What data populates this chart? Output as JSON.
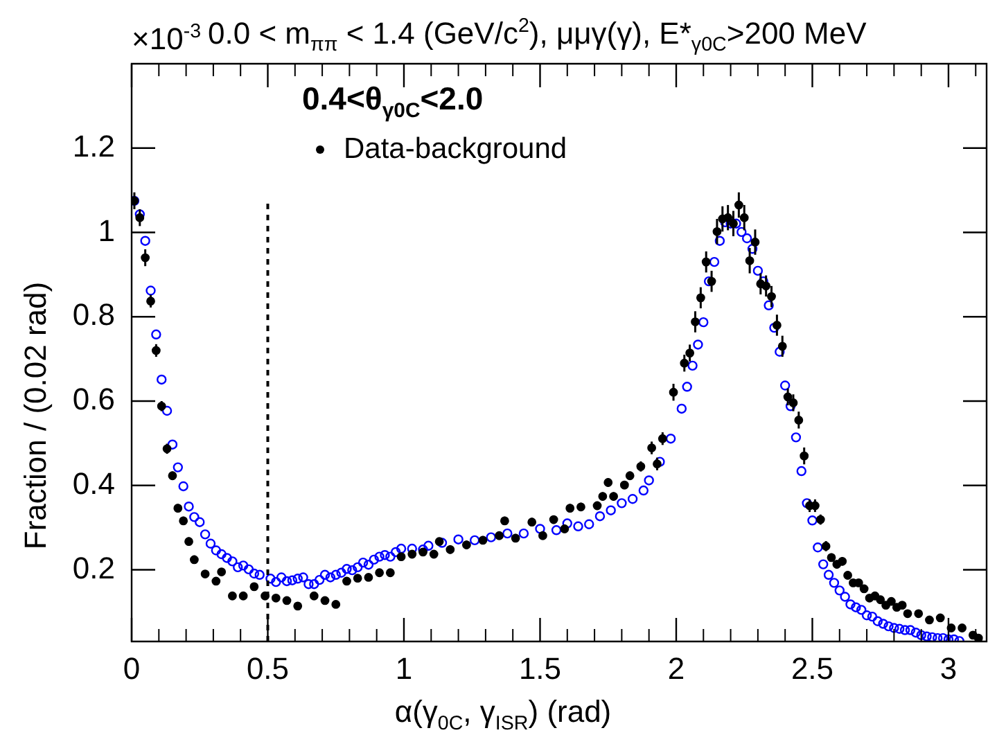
{
  "chart_data": {
    "type": "scatter",
    "title": "0.0 < m$_{ππ}$ < 1.4 (GeV/c$^{2}$), μμγ(γ), E*$_{γ0C}$>200 MeV",
    "xlabel": "α(γ$_{0C}$, γ$_{ISR}$) (rad)",
    "ylabel": "Fraction / (0.02 rad)",
    "legend_title": "0.4<θ$_{γ0C}$<2.0",
    "annotations": [
      "×10$^{-3}$"
    ],
    "xlim": [
      0,
      3.14
    ],
    "xticks": [
      0,
      0.5,
      1,
      1.5,
      2,
      2.5,
      3
    ],
    "ylim": [
      0.03,
      1.4
    ],
    "yticks": [
      0.2,
      0.4,
      0.6,
      0.8,
      1,
      1.2
    ],
    "grid": false,
    "legend": "top left",
    "marker": "circle",
    "ref_lines": [
      {
        "axis": "x",
        "value": 0.5,
        "color": "#000000",
        "line_style": "dashed"
      }
    ],
    "series": [
      {
        "name": "Data-background",
        "color": "#000000",
        "x": [
          0.01,
          0.03,
          0.05,
          0.07,
          0.09,
          0.11,
          0.13,
          0.15,
          0.17,
          0.19,
          0.21,
          0.23,
          0.27,
          0.31,
          0.33,
          0.37,
          0.41,
          0.45,
          0.49,
          0.53,
          0.57,
          0.61,
          0.67,
          0.71,
          0.75,
          0.79,
          0.83,
          0.87,
          0.91,
          0.95,
          0.99,
          1.03,
          1.07,
          1.11,
          1.13,
          1.17,
          1.23,
          1.29,
          1.35,
          1.37,
          1.41,
          1.47,
          1.51,
          1.55,
          1.59,
          1.61,
          1.65,
          1.71,
          1.73,
          1.75,
          1.77,
          1.81,
          1.83,
          1.87,
          1.91,
          1.93,
          1.95,
          1.99,
          2.03,
          2.05,
          2.07,
          2.09,
          2.11,
          2.13,
          2.15,
          2.17,
          2.19,
          2.21,
          2.23,
          2.25,
          2.27,
          2.29,
          2.31,
          2.33,
          2.35,
          2.37,
          2.39,
          2.41,
          2.43,
          2.45,
          2.47,
          2.49,
          2.51,
          2.53,
          2.55,
          2.57,
          2.59,
          2.61,
          2.63,
          2.65,
          2.67,
          2.69,
          2.71,
          2.73,
          2.75,
          2.77,
          2.79,
          2.81,
          2.83,
          2.85,
          2.89,
          2.93,
          2.97,
          3.01,
          3.05,
          3.09,
          3.11
        ],
        "values": [
          1.075,
          1.035,
          0.94,
          0.837,
          0.72,
          0.588,
          0.487,
          0.423,
          0.346,
          0.316,
          0.267,
          0.224,
          0.19,
          0.173,
          0.195,
          0.138,
          0.138,
          0.16,
          0.138,
          0.133,
          0.127,
          0.114,
          0.138,
          0.127,
          0.118,
          0.173,
          0.18,
          0.182,
          0.193,
          0.193,
          0.231,
          0.237,
          0.242,
          0.237,
          0.267,
          0.248,
          0.259,
          0.27,
          0.281,
          0.316,
          0.275,
          0.313,
          0.281,
          0.319,
          0.297,
          0.346,
          0.349,
          0.352,
          0.374,
          0.407,
          0.374,
          0.401,
          0.423,
          0.445,
          0.489,
          0.451,
          0.511,
          0.621,
          0.69,
          0.714,
          0.788,
          0.845,
          0.93,
          0.884,
          1.002,
          1.032,
          1.035,
          1.021,
          1.065,
          1.035,
          0.933,
          0.977,
          0.878,
          0.873,
          0.848,
          0.78,
          0.73,
          0.61,
          0.596,
          0.555,
          0.47,
          0.352,
          0.352,
          0.319,
          0.256,
          0.229,
          0.213,
          0.22,
          0.187,
          0.169,
          0.169,
          0.155,
          0.133,
          0.138,
          0.129,
          0.116,
          0.125,
          0.111,
          0.116,
          0.096,
          0.096,
          0.081,
          0.086,
          0.062,
          0.062,
          0.045,
          0.038
        ],
        "errors": [
          0.02,
          0.02,
          0.02,
          0.015,
          0.015,
          0.012,
          0.012,
          0.01,
          0.01,
          0.01,
          0.01,
          0.01,
          0.008,
          0.008,
          0.008,
          0.008,
          0.008,
          0.008,
          0.008,
          0.008,
          0.008,
          0.008,
          0.008,
          0.008,
          0.008,
          0.008,
          0.008,
          0.008,
          0.008,
          0.008,
          0.008,
          0.008,
          0.008,
          0.008,
          0.008,
          0.01,
          0.01,
          0.01,
          0.01,
          0.01,
          0.01,
          0.01,
          0.01,
          0.01,
          0.01,
          0.01,
          0.01,
          0.01,
          0.01,
          0.01,
          0.01,
          0.01,
          0.01,
          0.012,
          0.015,
          0.015,
          0.015,
          0.02,
          0.02,
          0.02,
          0.025,
          0.025,
          0.025,
          0.025,
          0.03,
          0.03,
          0.03,
          0.03,
          0.03,
          0.03,
          0.03,
          0.03,
          0.025,
          0.025,
          0.025,
          0.025,
          0.025,
          0.02,
          0.02,
          0.02,
          0.02,
          0.015,
          0.015,
          0.012,
          0.012,
          0.01,
          0.01,
          0.01,
          0.01,
          0.008,
          0.008,
          0.008,
          0.008,
          0.008,
          0.008,
          0.008,
          0.008,
          0.008,
          0.008,
          0.006,
          0.006,
          0.006,
          0.006,
          0.006,
          0.006,
          0.006,
          0.006
        ]
      },
      {
        "color": "#0000ff",
        "x": [
          0.01,
          0.03,
          0.05,
          0.07,
          0.09,
          0.11,
          0.13,
          0.15,
          0.17,
          0.19,
          0.21,
          0.23,
          0.25,
          0.27,
          0.29,
          0.31,
          0.33,
          0.35,
          0.37,
          0.39,
          0.41,
          0.43,
          0.45,
          0.47,
          0.51,
          0.53,
          0.55,
          0.57,
          0.59,
          0.61,
          0.63,
          0.65,
          0.67,
          0.69,
          0.71,
          0.73,
          0.75,
          0.77,
          0.79,
          0.81,
          0.83,
          0.85,
          0.87,
          0.89,
          0.91,
          0.93,
          0.95,
          0.97,
          0.99,
          1.03,
          1.07,
          1.09,
          1.14,
          1.2,
          1.26,
          1.32,
          1.38,
          1.44,
          1.5,
          1.56,
          1.6,
          1.64,
          1.68,
          1.72,
          1.76,
          1.8,
          1.84,
          1.88,
          1.9,
          1.94,
          1.98,
          2.02,
          2.04,
          2.06,
          2.08,
          2.1,
          2.12,
          2.14,
          2.16,
          2.18,
          2.2,
          2.22,
          2.24,
          2.26,
          2.28,
          2.3,
          2.32,
          2.34,
          2.36,
          2.38,
          2.4,
          2.42,
          2.44,
          2.46,
          2.48,
          2.5,
          2.52,
          2.54,
          2.56,
          2.58,
          2.6,
          2.62,
          2.64,
          2.66,
          2.68,
          2.7,
          2.72,
          2.74,
          2.76,
          2.78,
          2.8,
          2.82,
          2.84,
          2.86,
          2.88,
          2.9,
          2.92,
          2.94,
          2.96,
          2.98,
          3,
          3.02,
          3.04
        ],
        "values": [
          1.075,
          1.043,
          0.98,
          0.862,
          0.758,
          0.651,
          0.577,
          0.497,
          0.443,
          0.398,
          0.35,
          0.325,
          0.313,
          0.284,
          0.262,
          0.246,
          0.237,
          0.228,
          0.22,
          0.206,
          0.21,
          0.201,
          0.191,
          0.188,
          0.179,
          0.171,
          0.182,
          0.173,
          0.175,
          0.179,
          0.182,
          0.166,
          0.166,
          0.176,
          0.188,
          0.182,
          0.188,
          0.193,
          0.202,
          0.199,
          0.206,
          0.217,
          0.212,
          0.224,
          0.231,
          0.235,
          0.231,
          0.242,
          0.25,
          0.25,
          0.248,
          0.257,
          0.264,
          0.272,
          0.27,
          0.277,
          0.286,
          0.286,
          0.297,
          0.294,
          0.31,
          0.303,
          0.308,
          0.327,
          0.341,
          0.358,
          0.368,
          0.388,
          0.412,
          0.456,
          0.511,
          0.582,
          0.634,
          0.684,
          0.734,
          0.787,
          0.884,
          0.93,
          0.98,
          1.024,
          1.021,
          1.021,
          1.001,
          0.986,
          0.961,
          0.909,
          0.884,
          0.827,
          0.774,
          0.717,
          0.637,
          0.588,
          0.514,
          0.434,
          0.358,
          0.317,
          0.253,
          0.213,
          0.188,
          0.169,
          0.151,
          0.136,
          0.118,
          0.111,
          0.105,
          0.092,
          0.089,
          0.078,
          0.072,
          0.066,
          0.062,
          0.06,
          0.057,
          0.057,
          0.051,
          0.045,
          0.042,
          0.04,
          0.038,
          0.038,
          0.035,
          0.035,
          0.031
        ]
      }
    ]
  }
}
